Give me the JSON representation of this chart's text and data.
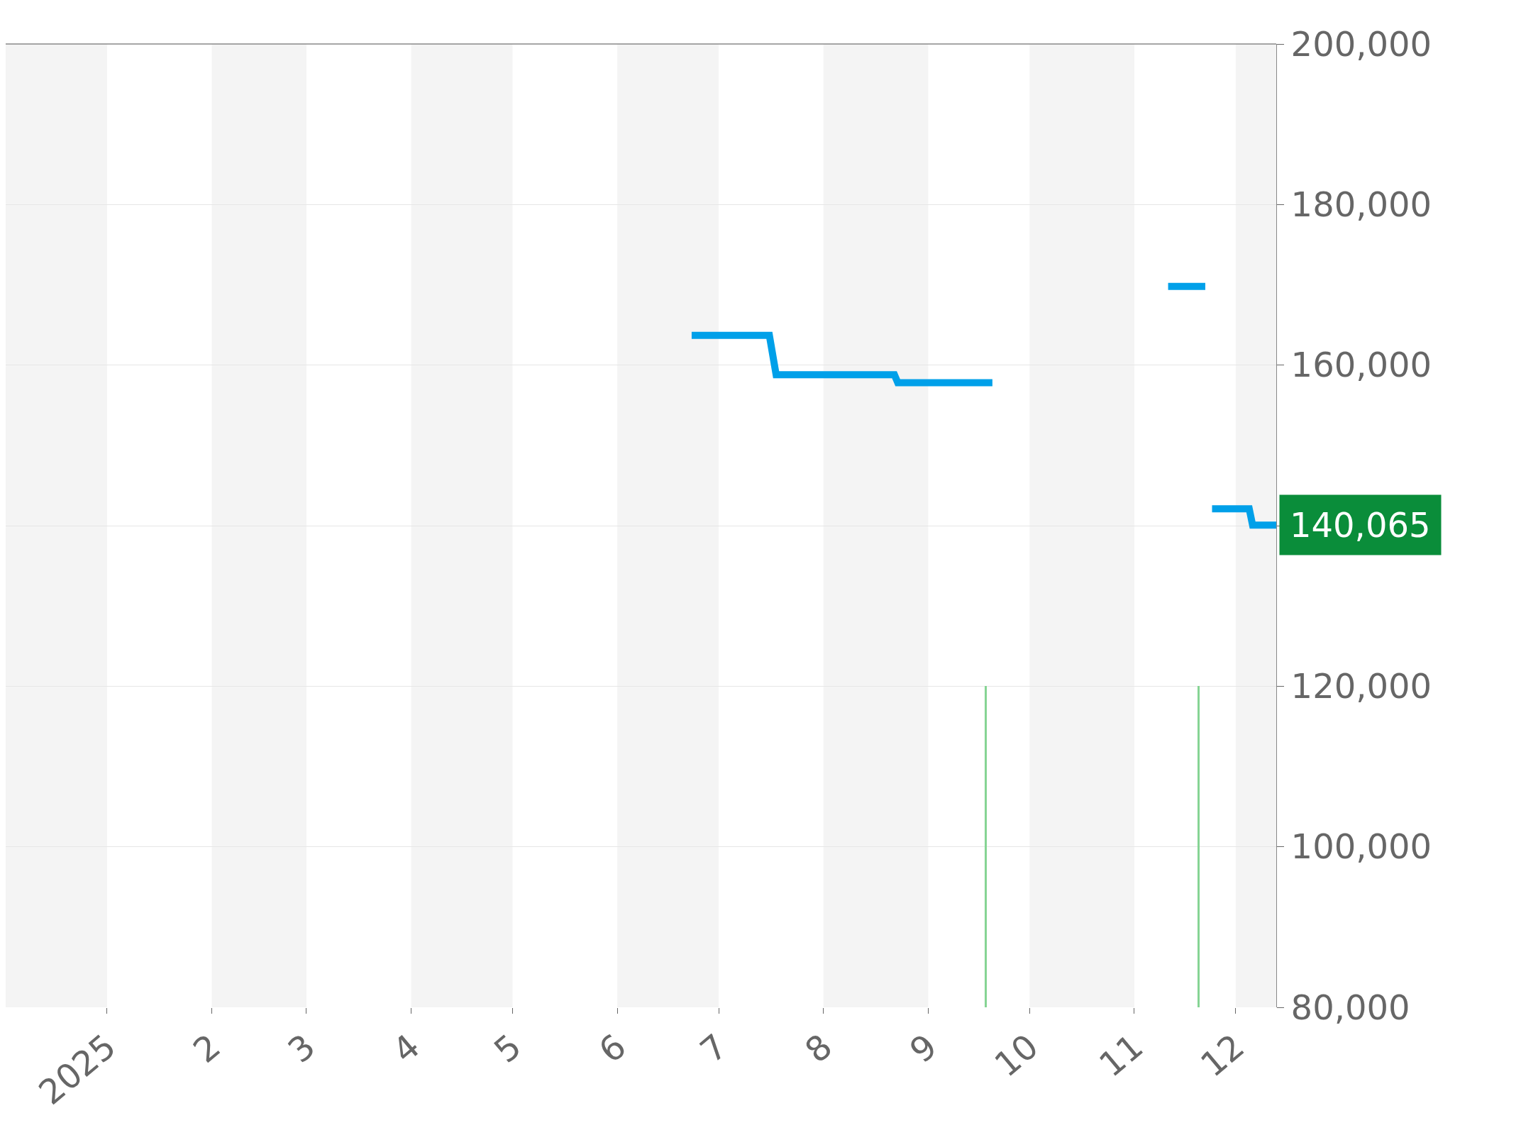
{
  "chart_data": {
    "type": "line",
    "x": [
      "2025-06-23",
      "2025-07-16",
      "2025-07-18",
      "2025-08-22",
      "2025-08-23",
      "2025-09-20",
      "2025-10-15",
      "2025-11-11",
      "2025-11-22",
      "2025-11-23",
      "2025-11-24",
      "2025-12-05",
      "2025-12-06",
      "2025-12-13"
    ],
    "series": [
      {
        "color": "#00a0e9",
        "values": [
          163700,
          163700,
          158800,
          158800,
          157800,
          157800,
          null,
          169800,
          169800,
          null,
          142100,
          142100,
          140065,
          140065
        ]
      },
      {
        "type": "bar",
        "color": "#86d494",
        "x": [
          "2025-09-18",
          "2025-11-20"
        ],
        "values": [
          120000,
          120000
        ]
      }
    ],
    "xlim": [
      "2024-12-02",
      "2025-12-13"
    ],
    "xticks": [
      {
        "value": "2025-01-01",
        "label": "2025"
      },
      {
        "value": "2025-02-01",
        "label": "2"
      },
      {
        "value": "2025-03-01",
        "label": "3"
      },
      {
        "value": "2025-04-01",
        "label": "4"
      },
      {
        "value": "2025-05-01",
        "label": "5"
      },
      {
        "value": "2025-06-01",
        "label": "6"
      },
      {
        "value": "2025-07-01",
        "label": "7"
      },
      {
        "value": "2025-08-01",
        "label": "8"
      },
      {
        "value": "2025-09-01",
        "label": "9"
      },
      {
        "value": "2025-10-01",
        "label": "10"
      },
      {
        "value": "2025-11-01",
        "label": "11"
      },
      {
        "value": "2025-12-01",
        "label": "12"
      }
    ],
    "ylim": [
      80000,
      200000
    ],
    "yticks": [
      {
        "value": 80000,
        "label": "80,000"
      },
      {
        "value": 100000,
        "label": "100,000"
      },
      {
        "value": 120000,
        "label": "120,000"
      },
      {
        "value": 140000,
        "label": null
      },
      {
        "value": 160000,
        "label": "160,000"
      },
      {
        "value": 180000,
        "label": "180,000"
      },
      {
        "value": 200000,
        "label": "200,000"
      }
    ],
    "bands": [
      {
        "axis": "x",
        "from": "2024-12-02",
        "to": "2025-01-01",
        "color": "#f4f4f4"
      },
      {
        "axis": "x",
        "from": "2025-02-01",
        "to": "2025-03-01",
        "color": "#f4f4f4"
      },
      {
        "axis": "x",
        "from": "2025-04-01",
        "to": "2025-05-01",
        "color": "#f4f4f4"
      },
      {
        "axis": "x",
        "from": "2025-06-01",
        "to": "2025-07-01",
        "color": "#f4f4f4"
      },
      {
        "axis": "x",
        "from": "2025-08-01",
        "to": "2025-09-01",
        "color": "#f4f4f4"
      },
      {
        "axis": "x",
        "from": "2025-10-01",
        "to": "2025-11-01",
        "color": "#f4f4f4"
      },
      {
        "axis": "x",
        "from": "2025-12-01",
        "to": "2025-12-13",
        "color": "#f4f4f4"
      }
    ],
    "annotations": [
      {
        "text": "140,065",
        "x": "2025-12-13",
        "y": 140065
      }
    ],
    "grid": "y"
  }
}
